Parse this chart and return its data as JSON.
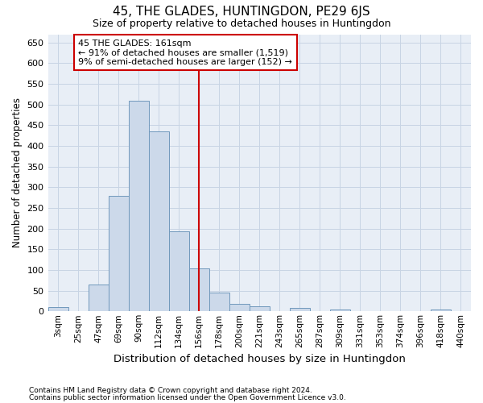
{
  "title": "45, THE GLADES, HUNTINGDON, PE29 6JS",
  "subtitle": "Size of property relative to detached houses in Huntingdon",
  "xlabel": "Distribution of detached houses by size in Huntingdon",
  "ylabel": "Number of detached properties",
  "bar_color": "#ccd9ea",
  "bar_edge_color": "#7098bc",
  "vline_color": "#cc0000",
  "annotation_line1": "45 THE GLADES: 161sqm",
  "annotation_line2": "← 91% of detached houses are smaller (1,519)",
  "annotation_line3": "9% of semi-detached houses are larger (152) →",
  "footer1": "Contains HM Land Registry data © Crown copyright and database right 2024.",
  "footer2": "Contains public sector information licensed under the Open Government Licence v3.0.",
  "categories": [
    "3sqm",
    "25sqm",
    "47sqm",
    "69sqm",
    "90sqm",
    "112sqm",
    "134sqm",
    "156sqm",
    "178sqm",
    "200sqm",
    "221sqm",
    "243sqm",
    "265sqm",
    "287sqm",
    "309sqm",
    "331sqm",
    "353sqm",
    "374sqm",
    "396sqm",
    "418sqm",
    "440sqm"
  ],
  "values": [
    10,
    0,
    65,
    280,
    510,
    435,
    193,
    103,
    46,
    18,
    12,
    0,
    8,
    0,
    5,
    0,
    0,
    0,
    0,
    5,
    0
  ],
  "ylim": [
    0,
    670
  ],
  "yticks": [
    0,
    50,
    100,
    150,
    200,
    250,
    300,
    350,
    400,
    450,
    500,
    550,
    600,
    650
  ],
  "grid_color": "#c8d4e4",
  "background_color": "#e8eef6",
  "vline_idx": 7
}
